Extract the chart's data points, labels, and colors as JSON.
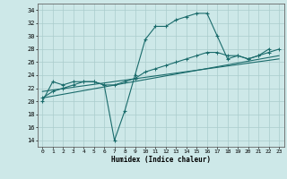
{
  "xlabel": "Humidex (Indice chaleur)",
  "bg_color": "#cde8e8",
  "grid_color": "#aacccc",
  "line_color": "#1a6b6b",
  "xlim": [
    -0.5,
    23.5
  ],
  "ylim": [
    13,
    35
  ],
  "yticks": [
    14,
    16,
    18,
    20,
    22,
    24,
    26,
    28,
    30,
    32,
    34
  ],
  "xticks": [
    0,
    1,
    2,
    3,
    4,
    5,
    6,
    7,
    8,
    9,
    10,
    11,
    12,
    13,
    14,
    15,
    16,
    17,
    18,
    19,
    20,
    21,
    22,
    23
  ],
  "series1_x": [
    0,
    1,
    2,
    3,
    4,
    5,
    6,
    7,
    8,
    9,
    10,
    11,
    12,
    13,
    14,
    15,
    16,
    17,
    18,
    19,
    20,
    21,
    22
  ],
  "series1_y": [
    20,
    23,
    22.5,
    23,
    23,
    23,
    22.5,
    14,
    18.5,
    24,
    29.5,
    31.5,
    31.5,
    32.5,
    33,
    33.5,
    33.5,
    30,
    26.5,
    27,
    26.5,
    27,
    28
  ],
  "series2_x": [
    0,
    1,
    2,
    3,
    4,
    5,
    6,
    7,
    8,
    9,
    10,
    11,
    12,
    13,
    14,
    15,
    16,
    17,
    18,
    19,
    20,
    21,
    22,
    23
  ],
  "series2_y": [
    20.5,
    21.5,
    22.0,
    22.5,
    23.0,
    23.0,
    22.5,
    22.5,
    23.0,
    23.5,
    24.5,
    25.0,
    25.5,
    26.0,
    26.5,
    27.0,
    27.5,
    27.5,
    27.0,
    27.0,
    26.5,
    27.0,
    27.5,
    28.0
  ],
  "series3_x": [
    0,
    23
  ],
  "series3_y": [
    20.5,
    27.0
  ],
  "series4_x": [
    0,
    23
  ],
  "series4_y": [
    21.5,
    26.5
  ]
}
